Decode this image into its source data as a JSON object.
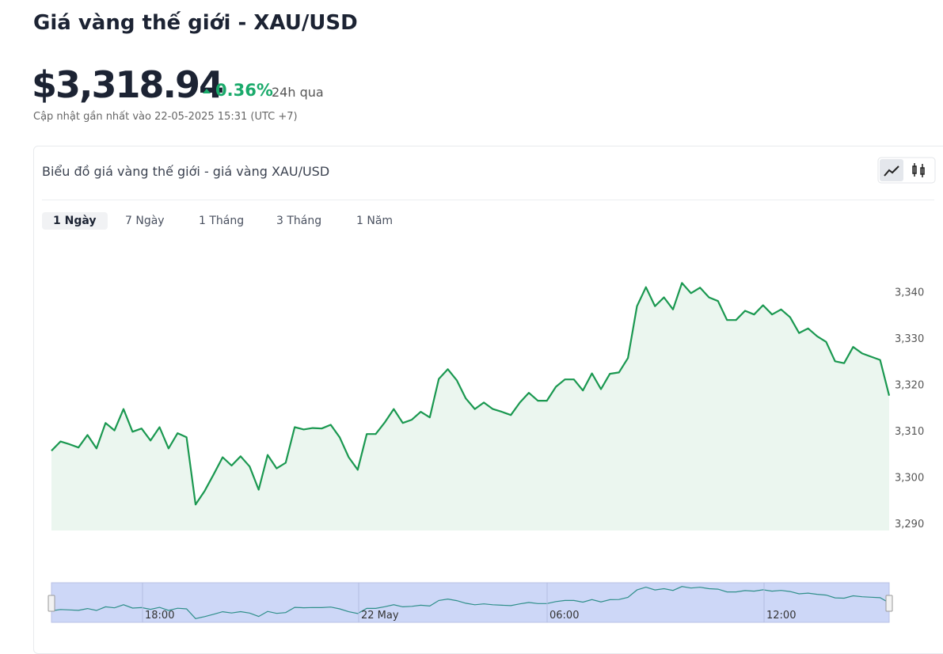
{
  "header": {
    "title": "Giá vàng thế giới - XAU/USD",
    "price": "$3,318.94",
    "change": "0.36%",
    "change_period": "24h qua",
    "updated": "Cập nhật gần nhất vào 22-05-2025 15:31 (UTC +7)"
  },
  "card": {
    "title": "Biểu đồ giá vàng thế giới - giá vàng XAU/USD",
    "tabs": [
      "1 Ngày",
      "7 Ngày",
      "1 Tháng",
      "3 Tháng",
      "1 Năm"
    ]
  },
  "chart_data": {
    "type": "line",
    "color": "#1a9850",
    "fill": "#ebf6ef",
    "values": [
      3305.7,
      3307.7,
      3307.1,
      3306.4,
      3309.1,
      3306.2,
      3311.7,
      3310.1,
      3314.7,
      3309.8,
      3310.5,
      3307.9,
      3310.8,
      3306.2,
      3309.5,
      3308.6,
      3294.1,
      3297.0,
      3300.6,
      3304.3,
      3302.5,
      3304.5,
      3302.3,
      3297.3,
      3304.8,
      3301.9,
      3303.1,
      3310.8,
      3310.3,
      3310.6,
      3310.5,
      3311.3,
      3308.6,
      3304.3,
      3301.6,
      3309.3,
      3309.3,
      3311.8,
      3314.7,
      3311.7,
      3312.4,
      3314.1,
      3312.9,
      3321.2,
      3323.3,
      3320.9,
      3317.0,
      3314.7,
      3316.1,
      3314.7,
      3314.1,
      3313.4,
      3316.1,
      3318.2,
      3316.5,
      3316.5,
      3319.5,
      3321.1,
      3321.1,
      3318.7,
      3322.4,
      3319.0,
      3322.3,
      3322.6,
      3325.7,
      3336.9,
      3341.0,
      3336.9,
      3338.8,
      3336.2,
      3341.9,
      3339.7,
      3340.9,
      3338.8,
      3338.0,
      3333.9,
      3333.9,
      3335.9,
      3335.1,
      3337.1,
      3335.1,
      3336.2,
      3334.5,
      3331.1,
      3332.1,
      3330.4,
      3329.2,
      3325.0,
      3324.6,
      3328.1,
      3326.7,
      3326.0,
      3325.3,
      3317.6
    ],
    "ylim": [
      3288.5,
      3350
    ],
    "yticks": [
      {
        "value": 3290,
        "label": "3,290"
      },
      {
        "value": 3300,
        "label": "3,300"
      },
      {
        "value": 3310,
        "label": "3,310"
      },
      {
        "value": 3320,
        "label": "3,320"
      },
      {
        "value": 3330,
        "label": "3,330"
      },
      {
        "value": 3340,
        "label": "3,340"
      }
    ],
    "navigator_labels": [
      "18:00",
      "22 May",
      "06:00",
      "12:00"
    ]
  }
}
